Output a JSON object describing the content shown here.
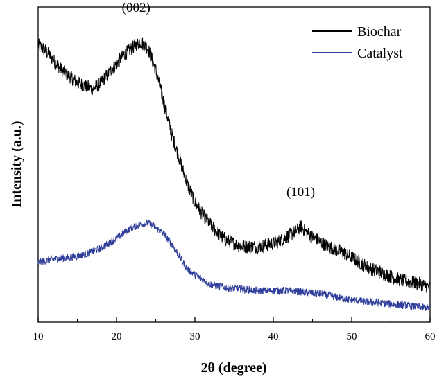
{
  "chart_data": {
    "type": "line",
    "title": "",
    "xlabel": "2θ (degree)",
    "ylabel": "Intensity (a.u.)",
    "xlim": [
      10,
      60
    ],
    "ylim": [
      0,
      1
    ],
    "x_ticks": [
      10,
      20,
      30,
      40,
      50,
      60
    ],
    "y_ticks_labeled": false,
    "grid": false,
    "legend_position": "top-right",
    "series": [
      {
        "name": "Biochar",
        "color": "#000000",
        "x": [
          10,
          11,
          12,
          13,
          14,
          15,
          16,
          17,
          18,
          19,
          20,
          21,
          22,
          23,
          24,
          25,
          26,
          27,
          28,
          29,
          30,
          31,
          32,
          33,
          34,
          35,
          36,
          37,
          38,
          39,
          40,
          41,
          42,
          43,
          43.5,
          44,
          45,
          46,
          47,
          48,
          49,
          50,
          51,
          52,
          53,
          54,
          55,
          56,
          57,
          58,
          59,
          60
        ],
        "y": [
          0.88,
          0.86,
          0.83,
          0.8,
          0.78,
          0.76,
          0.75,
          0.74,
          0.76,
          0.79,
          0.82,
          0.85,
          0.87,
          0.89,
          0.87,
          0.8,
          0.7,
          0.6,
          0.52,
          0.44,
          0.38,
          0.34,
          0.31,
          0.28,
          0.26,
          0.25,
          0.24,
          0.24,
          0.24,
          0.245,
          0.25,
          0.26,
          0.275,
          0.29,
          0.305,
          0.29,
          0.27,
          0.255,
          0.24,
          0.23,
          0.22,
          0.205,
          0.19,
          0.175,
          0.165,
          0.155,
          0.145,
          0.135,
          0.13,
          0.125,
          0.12,
          0.11
        ]
      },
      {
        "name": "Catalyst",
        "color": "#2e3d9a",
        "x": [
          10,
          12,
          14,
          16,
          17,
          18,
          19,
          20,
          21,
          22,
          23,
          24,
          25,
          26,
          27,
          28,
          29,
          30,
          31,
          32,
          34,
          36,
          38,
          40,
          42,
          44,
          46,
          48,
          50,
          52,
          54,
          56,
          58,
          60
        ],
        "y": [
          0.19,
          0.2,
          0.205,
          0.215,
          0.225,
          0.235,
          0.25,
          0.265,
          0.285,
          0.3,
          0.31,
          0.315,
          0.3,
          0.28,
          0.25,
          0.21,
          0.17,
          0.15,
          0.135,
          0.12,
          0.11,
          0.105,
          0.1,
          0.1,
          0.1,
          0.095,
          0.09,
          0.08,
          0.07,
          0.065,
          0.06,
          0.055,
          0.05,
          0.045
        ]
      }
    ],
    "annotations": [
      {
        "text": "(002)",
        "x": 22.5,
        "y": 0.985
      },
      {
        "text": "(101)",
        "x": 43.5,
        "y": 0.4
      }
    ]
  }
}
